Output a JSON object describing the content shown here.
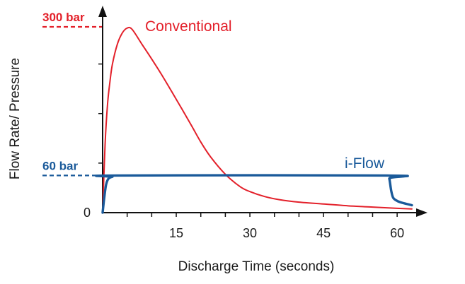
{
  "chart_data": {
    "type": "line",
    "title": "",
    "xlabel": "Discharge Time (seconds)",
    "ylabel": "Flow Rate/ Pressure",
    "xlim": [
      0,
      65
    ],
    "ylim": [
      0,
      320
    ],
    "xticks": [
      0,
      5,
      10,
      15,
      20,
      25,
      30,
      35,
      40,
      45,
      50,
      55,
      60
    ],
    "xtick_labels": [
      {
        "value": 15,
        "label": "15"
      },
      {
        "value": 30,
        "label": "30"
      },
      {
        "value": 45,
        "label": "45"
      },
      {
        "value": 60,
        "label": "60"
      }
    ],
    "y_zero_label": "0",
    "yticks": [
      80,
      160,
      240
    ],
    "reference_lines": [
      {
        "value": 300,
        "label": "300 bar",
        "color": "#e3202a"
      },
      {
        "value": 60,
        "label": "60 bar",
        "color": "#1a5a9a"
      }
    ],
    "series": [
      {
        "name": "Conventional",
        "color": "#e3202a",
        "x": [
          0,
          0.5,
          1,
          1.5,
          2,
          3,
          4,
          5,
          6,
          8,
          10,
          12,
          15,
          18,
          20,
          22,
          25,
          28,
          30,
          33,
          36,
          40,
          45,
          50,
          55,
          60,
          63
        ],
        "y": [
          0,
          110,
          175,
          212,
          240,
          272,
          290,
          298,
          296,
          272,
          248,
          223,
          183,
          142,
          114,
          90,
          62,
          42,
          34,
          26,
          21,
          17,
          14,
          11,
          9,
          7,
          6
        ]
      },
      {
        "name": "i-Flow",
        "color": "#1a5a9a",
        "x": [
          0,
          0.3,
          0.7,
          1.2,
          2,
          3,
          58,
          58.4,
          58.8,
          59.2,
          60,
          61,
          62,
          63
        ],
        "y": [
          0,
          22,
          45,
          55,
          58,
          60,
          60,
          55,
          35,
          24,
          19,
          16,
          14,
          12
        ]
      }
    ]
  }
}
